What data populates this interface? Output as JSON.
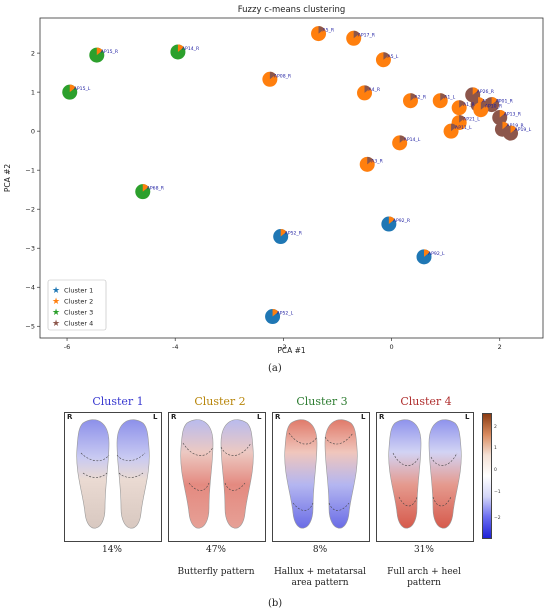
{
  "chart_data": {
    "type": "scatter",
    "title": "Fuzzy c-means clustering",
    "xlabel": "PCA #1",
    "ylabel": "PCA #2",
    "xlim": [
      -6.5,
      2.8
    ],
    "ylim": [
      -5.3,
      2.9
    ],
    "xticks": [
      "-6",
      "-4",
      "-2",
      "0",
      "2"
    ],
    "xtick_values": [
      -6,
      -4,
      -2,
      0,
      2
    ],
    "yticks": [
      "2",
      "1",
      "0",
      "−1",
      "−2",
      "−3",
      "−4",
      "−5"
    ],
    "ytick_values": [
      2,
      1,
      0,
      -1,
      -2,
      -3,
      -4,
      -5
    ],
    "legend_position": "bottom-left",
    "series": [
      {
        "name": "Cluster 1",
        "color": "#1f77b4"
      },
      {
        "name": "Cluster 2",
        "color": "#ff7f0e"
      },
      {
        "name": "Cluster 3",
        "color": "#2ca02c"
      },
      {
        "name": "Cluster 4",
        "color": "#8c564b"
      }
    ],
    "points": [
      {
        "label": "AP15_R",
        "x": -5.45,
        "y": 1.95,
        "c": 3
      },
      {
        "label": "AP14_R",
        "x": -3.95,
        "y": 2.03,
        "c": 3
      },
      {
        "label": "AP15_L",
        "x": -5.95,
        "y": 1.0,
        "c": 3
      },
      {
        "label": "AP68_R",
        "x": -4.6,
        "y": -1.55,
        "c": 3
      },
      {
        "label": "A5_R",
        "x": -1.35,
        "y": 2.5,
        "c": 2
      },
      {
        "label": "AP17_R",
        "x": -0.7,
        "y": 2.38,
        "c": 2
      },
      {
        "label": "A5_L",
        "x": -0.15,
        "y": 1.83,
        "c": 2
      },
      {
        "label": "AP08_R",
        "x": -2.25,
        "y": 1.33,
        "c": 2
      },
      {
        "label": "A4_R",
        "x": -0.5,
        "y": 0.98,
        "c": 2
      },
      {
        "label": "A2_R",
        "x": 0.35,
        "y": 0.78,
        "c": 2
      },
      {
        "label": "A1_L",
        "x": 0.9,
        "y": 0.78,
        "c": 2
      },
      {
        "label": "AP26_R",
        "x": 1.5,
        "y": 0.93,
        "c": 4
      },
      {
        "label": "AP11_R",
        "x": 1.6,
        "y": 0.68,
        "c": 4
      },
      {
        "label": "A1_R",
        "x": 1.25,
        "y": 0.6,
        "c": 2
      },
      {
        "label": "AP01_R",
        "x": 1.85,
        "y": 0.68,
        "c": 4
      },
      {
        "label": "AP10_R",
        "x": 1.65,
        "y": 0.55,
        "c": 2
      },
      {
        "label": "AP13_R",
        "x": 2.0,
        "y": 0.35,
        "c": 4
      },
      {
        "label": "AP21_L",
        "x": 1.25,
        "y": 0.22,
        "c": 2
      },
      {
        "label": "AP19_R",
        "x": 2.05,
        "y": 0.05,
        "c": 4
      },
      {
        "label": "AP19_L",
        "x": 2.2,
        "y": -0.05,
        "c": 4
      },
      {
        "label": "AP11_L",
        "x": 1.1,
        "y": 0.0,
        "c": 2
      },
      {
        "label": "A3_R",
        "x": -0.45,
        "y": -0.85,
        "c": 2
      },
      {
        "label": "AP14_L",
        "x": 0.15,
        "y": -0.3,
        "c": 2
      },
      {
        "label": "AP52_R",
        "x": -2.05,
        "y": -2.7,
        "c": 1
      },
      {
        "label": "AP92_R",
        "x": -0.05,
        "y": -2.38,
        "c": 1
      },
      {
        "label": "AP92_L",
        "x": 0.6,
        "y": -3.22,
        "c": 1
      },
      {
        "label": "AP52_L",
        "x": -2.2,
        "y": -4.75,
        "c": 1
      }
    ]
  },
  "figure": {
    "label_a": "(a)",
    "label_b": "(b)",
    "colorbar_ticks": [
      "2",
      "1",
      "0",
      "−1",
      "−2"
    ]
  },
  "clusters": [
    {
      "title": "Cluster 1",
      "color": "#3a3ad0",
      "percent": "14%",
      "caption": ""
    },
    {
      "title": "Cluster 2",
      "color": "#b8860b",
      "percent": "47%",
      "caption": "Butterfly pattern"
    },
    {
      "title": "Cluster 3",
      "color": "#2e7d32",
      "percent": "8%",
      "caption": "Hallux + metatarsal area pattern"
    },
    {
      "title": "Cluster 4",
      "color": "#b03030",
      "percent": "31%",
      "caption": "Full arch + heel pattern"
    }
  ],
  "side_labels": {
    "right": "R",
    "left": "L"
  }
}
